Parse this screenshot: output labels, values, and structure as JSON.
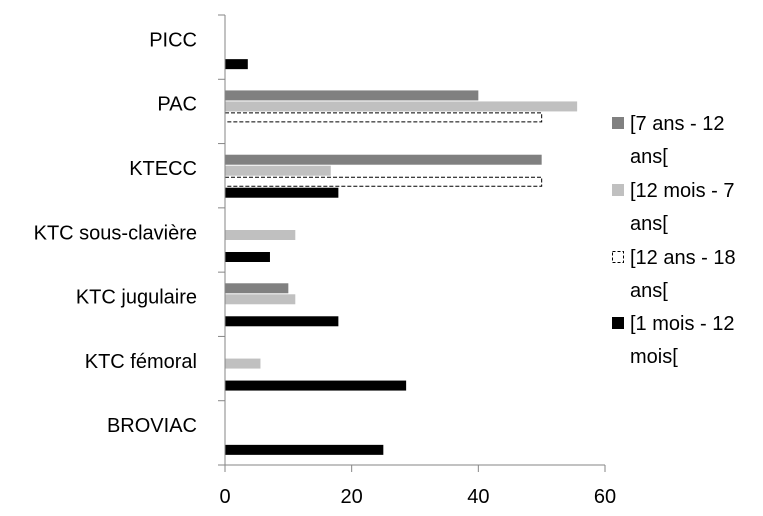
{
  "chart_data": {
    "type": "bar",
    "orientation": "horizontal",
    "categories": [
      "PICC",
      "PAC",
      "KTECC",
      "KTC sous-clavière",
      "KTC jugulaire",
      "KTC fémoral",
      "BROVIAC"
    ],
    "series": [
      {
        "name": "[7 ans  - 12 ans[",
        "color": "#808080",
        "style": "solid",
        "values": [
          0,
          40,
          50,
          0,
          10,
          0,
          0
        ]
      },
      {
        "name": "[12 mois - 7 ans[",
        "color": "#c0c0c0",
        "style": "solid",
        "values": [
          0,
          55.6,
          16.7,
          11.1,
          11.1,
          5.6,
          0
        ]
      },
      {
        "name": "[12 ans - 18 ans[",
        "color": "#ffffff",
        "style": "dashed",
        "values": [
          0,
          50,
          50,
          0,
          0,
          0,
          0
        ]
      },
      {
        "name": "[1 mois - 12 mois[",
        "color": "#000000",
        "style": "solid",
        "values": [
          3.6,
          0,
          17.9,
          7.1,
          17.9,
          28.6,
          25
        ]
      }
    ],
    "xlim": [
      0,
      60
    ],
    "x_ticks": [
      "0",
      "20",
      "40",
      "60"
    ],
    "grid": false,
    "legend_position": "right",
    "legend_lines": [
      [
        "[7 ans  - 12",
        "ans["
      ],
      [
        "[12 mois - 7",
        "ans["
      ],
      [
        "[12 ans - 18",
        "ans["
      ],
      [
        "[1 mois - 12",
        "mois["
      ]
    ],
    "title": "",
    "xlabel": "",
    "ylabel": ""
  }
}
